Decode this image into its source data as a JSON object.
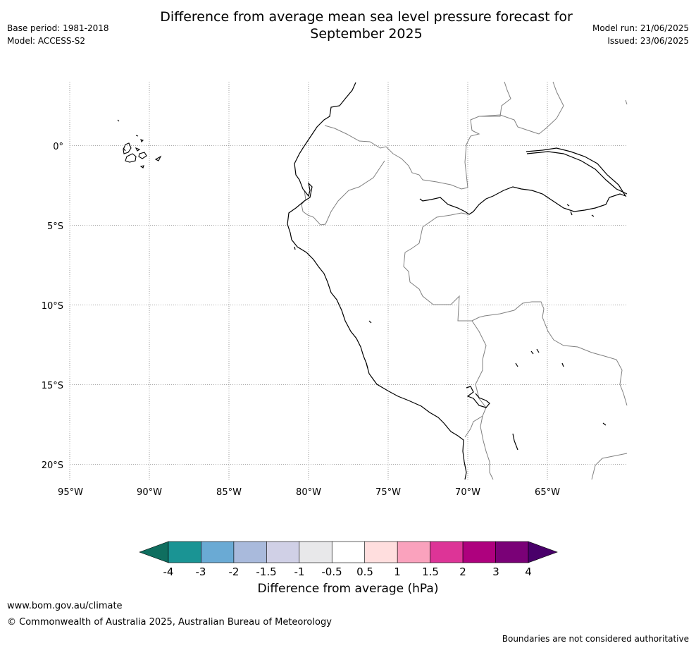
{
  "title_line1": "Difference from average mean sea level pressure forecast for",
  "title_line2": "September 2025",
  "base_period": "Base period: 1981-2018",
  "model": "Model: ACCESS-S2",
  "model_run": "Model run: 21/06/2025",
  "issued": "Issued: 23/06/2025",
  "map": {
    "lon_range": [
      -95,
      -60
    ],
    "lat_range": [
      -21,
      4
    ],
    "grid": true,
    "lat_labels": [
      "0°",
      "5°S",
      "10°S",
      "15°S",
      "20°S"
    ],
    "lon_labels": [
      "95°W",
      "90°W",
      "85°W",
      "80°W",
      "75°W",
      "70°W",
      "65°W"
    ],
    "coast_color": "#000000",
    "border_color": "#808080"
  },
  "colorbar": {
    "title": "Difference from average (hPa)",
    "ticks": [
      "-4",
      "-3",
      "-2",
      "-1.5",
      "-1",
      "-0.5",
      "0.5",
      "1",
      "1.5",
      "2",
      "3",
      "4"
    ],
    "colors": [
      "#1a9494",
      "#6aaad4",
      "#a9badc",
      "#d0d0e6",
      "#e8e8ea",
      "#ffffff",
      "#ffdede",
      "#faa2bd",
      "#dd3497",
      "#ae017e",
      "#7a0177"
    ],
    "under_color": "#0f6e5f",
    "over_color": "#49006a"
  },
  "footer": {
    "url": "www.bom.gov.au/climate",
    "copyright": "© Commonwealth of Australia 2025, Australian Bureau of Meteorology",
    "disclaimer": "Boundaries are not considered authoritative"
  }
}
